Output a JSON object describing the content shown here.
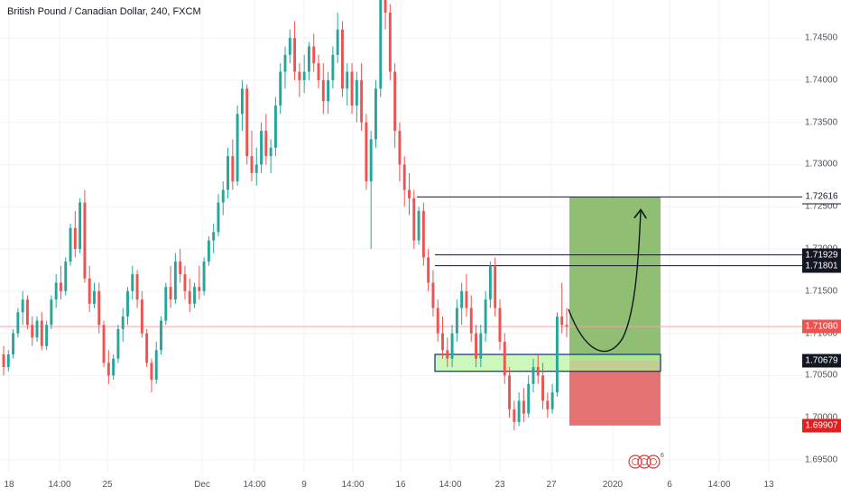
{
  "header": {
    "title": "British Pound / Canadian Dollar, 240, FXCM"
  },
  "price_axis": {
    "labels": [
      "1.74500",
      "1.74000",
      "1.73500",
      "1.73000",
      "1.72500",
      "1.72000",
      "1.71500",
      "1.71000",
      "1.70500",
      "1.70000",
      "1.69500"
    ],
    "tags": [
      {
        "value": "1.72613",
        "bg": "#131722",
        "fg": "#ffffff"
      },
      {
        "value": "1.72616",
        "bg": "#ffffff",
        "fg": "#131722"
      },
      {
        "value": "1.71929",
        "bg": "#131722",
        "fg": "#ffffff"
      },
      {
        "value": "1.71801",
        "bg": "#131722",
        "fg": "#ffffff"
      },
      {
        "value": "1.71080",
        "bg": "#ef5350",
        "fg": "#ffffff"
      },
      {
        "value": "1.70679",
        "bg": "#131722",
        "fg": "#ffffff"
      },
      {
        "value": "1.69907",
        "bg": "#e02020",
        "fg": "#ffffff"
      }
    ]
  },
  "time_axis": {
    "labels": [
      "18",
      "14:00",
      "25",
      "Dec",
      "14:00",
      "9",
      "14:00",
      "16",
      "14:00",
      "23",
      "27",
      "2020",
      "6",
      "14:00",
      "13"
    ]
  },
  "badge": {
    "count": "6"
  },
  "colors": {
    "up": "#26a69a",
    "down": "#ef5350",
    "profit_zone": "#7cb35a",
    "loss_zone": "#e25a5a",
    "support_zone": "#b7f5a0",
    "last_price_line": "#f4a6a6"
  },
  "chart_data": {
    "type": "candlestick",
    "symbol": "British Pound / Canadian Dollar",
    "interval": "240",
    "source": "FXCM",
    "ylim": [
      1.6935,
      1.7495
    ],
    "y_ticks": [
      1.745,
      1.74,
      1.735,
      1.73,
      1.725,
      1.72,
      1.715,
      1.71,
      1.705,
      1.7,
      1.695
    ],
    "last_price": 1.7108,
    "horizontal_lines": [
      1.72616,
      1.71929,
      1.71801
    ],
    "position": {
      "type": "long",
      "entry": 1.70679,
      "target": 1.72613,
      "stop": 1.69907
    },
    "support_zone": [
      1.7055,
      1.7075
    ],
    "x_labels": [
      "18",
      "14:00",
      "25",
      "Dec",
      "14:00",
      "9",
      "14:00",
      "16",
      "14:00",
      "23",
      "27",
      "2020",
      "6",
      "14:00",
      "13"
    ],
    "candles": [
      [
        1.7075,
        1.7085,
        1.705,
        1.706
      ],
      [
        1.706,
        1.708,
        1.7055,
        1.7075
      ],
      [
        1.7075,
        1.7105,
        1.707,
        1.71
      ],
      [
        1.71,
        1.713,
        1.7095,
        1.7125
      ],
      [
        1.7125,
        1.715,
        1.711,
        1.714
      ],
      [
        1.714,
        1.7145,
        1.7105,
        1.711
      ],
      [
        1.711,
        1.712,
        1.7085,
        1.7095
      ],
      [
        1.7095,
        1.712,
        1.709,
        1.7115
      ],
      [
        1.7115,
        1.7125,
        1.708,
        1.7085
      ],
      [
        1.7085,
        1.7115,
        1.708,
        1.711
      ],
      [
        1.711,
        1.7145,
        1.7105,
        1.714
      ],
      [
        1.714,
        1.717,
        1.713,
        1.716
      ],
      [
        1.716,
        1.718,
        1.714,
        1.715
      ],
      [
        1.715,
        1.719,
        1.7145,
        1.7185
      ],
      [
        1.7185,
        1.723,
        1.718,
        1.7225
      ],
      [
        1.7225,
        1.7245,
        1.719,
        1.72
      ],
      [
        1.72,
        1.726,
        1.7195,
        1.7255
      ],
      [
        1.7255,
        1.727,
        1.716,
        1.7165
      ],
      [
        1.7165,
        1.718,
        1.7125,
        1.7135
      ],
      [
        1.7135,
        1.716,
        1.713,
        1.715
      ],
      [
        1.715,
        1.716,
        1.71,
        1.711
      ],
      [
        1.711,
        1.7115,
        1.706,
        1.7065
      ],
      [
        1.7065,
        1.708,
        1.704,
        1.705
      ],
      [
        1.705,
        1.7075,
        1.7045,
        1.707
      ],
      [
        1.707,
        1.711,
        1.7065,
        1.7105
      ],
      [
        1.7105,
        1.713,
        1.709,
        1.712
      ],
      [
        1.712,
        1.7155,
        1.711,
        1.715
      ],
      [
        1.715,
        1.718,
        1.714,
        1.717
      ],
      [
        1.717,
        1.7175,
        1.713,
        1.714
      ],
      [
        1.714,
        1.715,
        1.7095,
        1.71
      ],
      [
        1.71,
        1.7105,
        1.706,
        1.7065
      ],
      [
        1.7065,
        1.707,
        1.703,
        1.7045
      ],
      [
        1.7045,
        1.709,
        1.704,
        1.708
      ],
      [
        1.708,
        1.712,
        1.7075,
        1.7115
      ],
      [
        1.7115,
        1.716,
        1.711,
        1.7155
      ],
      [
        1.7155,
        1.718,
        1.713,
        1.714
      ],
      [
        1.714,
        1.7195,
        1.7135,
        1.7185
      ],
      [
        1.7185,
        1.72,
        1.716,
        1.717
      ],
      [
        1.717,
        1.718,
        1.714,
        1.715
      ],
      [
        1.715,
        1.7165,
        1.7125,
        1.7135
      ],
      [
        1.7135,
        1.716,
        1.713,
        1.7155
      ],
      [
        1.7155,
        1.718,
        1.714,
        1.715
      ],
      [
        1.715,
        1.719,
        1.7145,
        1.7185
      ],
      [
        1.7185,
        1.7215,
        1.718,
        1.721
      ],
      [
        1.721,
        1.723,
        1.7195,
        1.722
      ],
      [
        1.722,
        1.7265,
        1.7215,
        1.7255
      ],
      [
        1.7255,
        1.728,
        1.724,
        1.727
      ],
      [
        1.727,
        1.732,
        1.726,
        1.731
      ],
      [
        1.731,
        1.733,
        1.727,
        1.728
      ],
      [
        1.728,
        1.737,
        1.7275,
        1.736
      ],
      [
        1.736,
        1.74,
        1.734,
        1.739
      ],
      [
        1.739,
        1.7395,
        1.73,
        1.731
      ],
      [
        1.731,
        1.734,
        1.728,
        1.729
      ],
      [
        1.729,
        1.732,
        1.7275,
        1.73
      ],
      [
        1.73,
        1.735,
        1.729,
        1.734
      ],
      [
        1.734,
        1.736,
        1.73,
        1.731
      ],
      [
        1.731,
        1.733,
        1.729,
        1.732
      ],
      [
        1.732,
        1.738,
        1.731,
        1.737
      ],
      [
        1.737,
        1.742,
        1.736,
        1.741
      ],
      [
        1.741,
        1.744,
        1.739,
        1.743
      ],
      [
        1.743,
        1.746,
        1.742,
        1.745
      ],
      [
        1.745,
        1.747,
        1.74,
        1.741
      ],
      [
        1.741,
        1.742,
        1.738,
        1.74
      ],
      [
        1.74,
        1.743,
        1.7385,
        1.741
      ],
      [
        1.741,
        1.7445,
        1.74,
        1.744
      ],
      [
        1.744,
        1.7455,
        1.741,
        1.742
      ],
      [
        1.742,
        1.743,
        1.739,
        1.74
      ],
      [
        1.74,
        1.742,
        1.736,
        1.7375
      ],
      [
        1.7375,
        1.741,
        1.736,
        1.74
      ],
      [
        1.74,
        1.744,
        1.739,
        1.743
      ],
      [
        1.743,
        1.748,
        1.742,
        1.746
      ],
      [
        1.746,
        1.747,
        1.738,
        1.739
      ],
      [
        1.739,
        1.742,
        1.737,
        1.741
      ],
      [
        1.741,
        1.742,
        1.736,
        1.737
      ],
      [
        1.737,
        1.741,
        1.735,
        1.74
      ],
      [
        1.74,
        1.742,
        1.734,
        1.735
      ],
      [
        1.735,
        1.736,
        1.727,
        1.728
      ],
      [
        1.728,
        1.734,
        1.72,
        1.733
      ],
      [
        1.733,
        1.74,
        1.732,
        1.739
      ],
      [
        1.739,
        1.75,
        1.738,
        1.75
      ],
      [
        1.75,
        1.751,
        1.746,
        1.748
      ],
      [
        1.748,
        1.749,
        1.74,
        1.741
      ],
      [
        1.741,
        1.742,
        1.732,
        1.734
      ],
      [
        1.734,
        1.735,
        1.728,
        1.73
      ],
      [
        1.73,
        1.731,
        1.725,
        1.727
      ],
      [
        1.727,
        1.729,
        1.724,
        1.726
      ],
      [
        1.726,
        1.727,
        1.72,
        1.721
      ],
      [
        1.721,
        1.725,
        1.7205,
        1.7245
      ],
      [
        1.7245,
        1.7255,
        1.718,
        1.719
      ],
      [
        1.719,
        1.72,
        1.715,
        1.716
      ],
      [
        1.716,
        1.7175,
        1.712,
        1.713
      ],
      [
        1.713,
        1.714,
        1.709,
        1.71
      ],
      [
        1.71,
        1.712,
        1.707,
        1.708
      ],
      [
        1.708,
        1.7095,
        1.706,
        1.707
      ],
      [
        1.707,
        1.711,
        1.706,
        1.71
      ],
      [
        1.71,
        1.714,
        1.709,
        1.713
      ],
      [
        1.713,
        1.716,
        1.711,
        1.715
      ],
      [
        1.715,
        1.717,
        1.712,
        1.713
      ],
      [
        1.713,
        1.7145,
        1.709,
        1.71
      ],
      [
        1.71,
        1.711,
        1.706,
        1.707
      ],
      [
        1.707,
        1.711,
        1.706,
        1.71
      ],
      [
        1.71,
        1.715,
        1.709,
        1.714
      ],
      [
        1.714,
        1.7185,
        1.713,
        1.718
      ],
      [
        1.718,
        1.719,
        1.712,
        1.713
      ],
      [
        1.713,
        1.714,
        1.708,
        1.709
      ],
      [
        1.709,
        1.71,
        1.704,
        1.705
      ],
      [
        1.705,
        1.706,
        1.7,
        1.701
      ],
      [
        1.701,
        1.702,
        1.6985,
        1.6995
      ],
      [
        1.6995,
        1.703,
        1.699,
        1.702
      ],
      [
        1.702,
        1.7035,
        1.6995,
        1.7005
      ],
      [
        1.7005,
        1.705,
        1.7,
        1.704
      ],
      [
        1.704,
        1.707,
        1.703,
        1.706
      ],
      [
        1.706,
        1.7075,
        1.704,
        1.705
      ],
      [
        1.705,
        1.7065,
        1.701,
        1.702
      ],
      [
        1.702,
        1.703,
        1.7,
        1.701
      ],
      [
        1.701,
        1.704,
        1.7005,
        1.703
      ],
      [
        1.703,
        1.7125,
        1.7025,
        1.712
      ],
      [
        1.712,
        1.716,
        1.71,
        1.711
      ],
      [
        1.711,
        1.713,
        1.7095,
        1.7108
      ]
    ]
  }
}
